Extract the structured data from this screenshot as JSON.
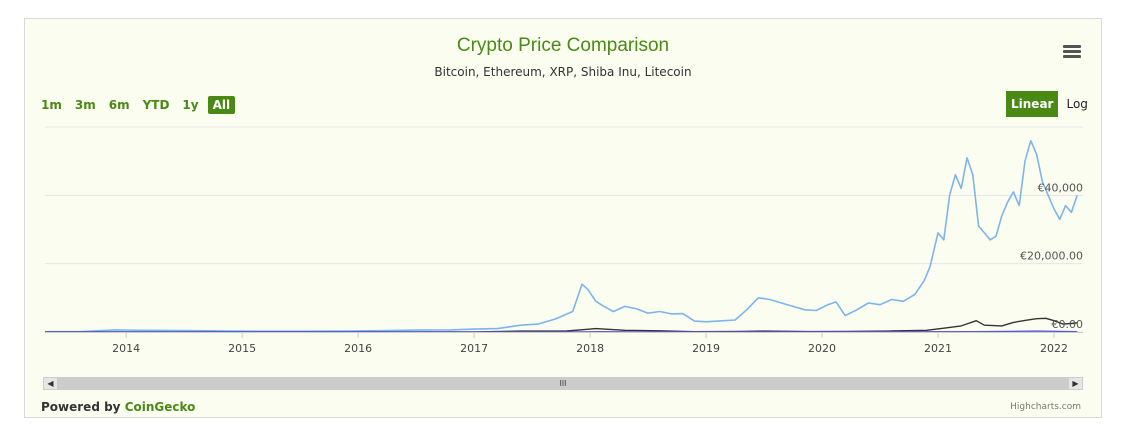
{
  "header": {
    "title": "Crypto Price Comparison",
    "subtitle": "Bitcoin, Ethereum, XRP, Shiba Inu, Litecoin",
    "menu_icon": "hamburger-menu-icon"
  },
  "range_selector": {
    "buttons": [
      "1m",
      "3m",
      "6m",
      "YTD",
      "1y",
      "All"
    ],
    "selected": "All"
  },
  "scale_toggle": {
    "linear_label": "Linear",
    "log_label": "Log",
    "selected": "Linear"
  },
  "footer": {
    "powered_prefix": "Powered by",
    "powered_link": "CoinGecko",
    "credits": "Highcharts.com"
  },
  "scrollbar": {
    "left_arrow": "◀",
    "right_arrow": "▶",
    "grip": "III"
  },
  "colors": {
    "accent": "#4a8a14",
    "bitcoin": "#7cb5ec",
    "ethereum": "#333333",
    "others": "#5b5bd6"
  },
  "chart_data": {
    "type": "line",
    "title": "Crypto Price Comparison",
    "subtitle": "Bitcoin, Ethereum, XRP, Shiba Inu, Litecoin",
    "ylim": [
      0,
      60000
    ],
    "y_tick_labels": [
      {
        "value": 0,
        "label": "€0.00"
      },
      {
        "value": 20000,
        "label": "€20,000.00"
      },
      {
        "value": 40000,
        "label": "€40,000"
      }
    ],
    "x_tick_labels": [
      {
        "value": 2014.0,
        "label": "2014"
      },
      {
        "value": 2015.0,
        "label": "2015"
      },
      {
        "value": 2016.0,
        "label": "2016"
      },
      {
        "value": 2017.0,
        "label": "2017"
      },
      {
        "value": 2018.0,
        "label": "2018"
      },
      {
        "value": 2019.0,
        "label": "2019"
      },
      {
        "value": 2020.0,
        "label": "2020"
      },
      {
        "value": 2021.0,
        "label": "2021"
      },
      {
        "value": 2022.0,
        "label": "2022"
      }
    ],
    "xlim": [
      2013.3,
      2022.25
    ],
    "grid": true,
    "series": [
      {
        "color": "#7cb5ec",
        "points": [
          [
            2013.3,
            100
          ],
          [
            2013.6,
            90
          ],
          [
            2013.9,
            600
          ],
          [
            2014.1,
            500
          ],
          [
            2014.5,
            450
          ],
          [
            2014.9,
            300
          ],
          [
            2015.2,
            220
          ],
          [
            2015.6,
            220
          ],
          [
            2015.9,
            300
          ],
          [
            2016.2,
            380
          ],
          [
            2016.5,
            550
          ],
          [
            2016.8,
            620
          ],
          [
            2017.0,
            850
          ],
          [
            2017.2,
            1000
          ],
          [
            2017.4,
            2000
          ],
          [
            2017.55,
            2300
          ],
          [
            2017.7,
            3800
          ],
          [
            2017.85,
            6000
          ],
          [
            2017.93,
            14000
          ],
          [
            2017.98,
            12500
          ],
          [
            2018.05,
            9000
          ],
          [
            2018.12,
            7500
          ],
          [
            2018.2,
            6000
          ],
          [
            2018.3,
            7500
          ],
          [
            2018.4,
            6800
          ],
          [
            2018.5,
            5500
          ],
          [
            2018.6,
            6000
          ],
          [
            2018.7,
            5300
          ],
          [
            2018.8,
            5400
          ],
          [
            2018.9,
            3200
          ],
          [
            2019.0,
            3000
          ],
          [
            2019.1,
            3200
          ],
          [
            2019.25,
            3500
          ],
          [
            2019.35,
            6500
          ],
          [
            2019.45,
            10000
          ],
          [
            2019.55,
            9500
          ],
          [
            2019.65,
            8500
          ],
          [
            2019.75,
            7500
          ],
          [
            2019.85,
            6500
          ],
          [
            2019.95,
            6300
          ],
          [
            2020.05,
            8000
          ],
          [
            2020.12,
            8800
          ],
          [
            2020.2,
            4800
          ],
          [
            2020.3,
            6500
          ],
          [
            2020.4,
            8500
          ],
          [
            2020.5,
            8000
          ],
          [
            2020.6,
            9500
          ],
          [
            2020.7,
            9000
          ],
          [
            2020.8,
            11000
          ],
          [
            2020.88,
            15000
          ],
          [
            2020.93,
            19000
          ],
          [
            2021.0,
            29000
          ],
          [
            2021.05,
            27000
          ],
          [
            2021.1,
            40000
          ],
          [
            2021.15,
            46000
          ],
          [
            2021.2,
            42000
          ],
          [
            2021.25,
            51000
          ],
          [
            2021.3,
            46000
          ],
          [
            2021.35,
            31000
          ],
          [
            2021.4,
            29000
          ],
          [
            2021.45,
            27000
          ],
          [
            2021.5,
            28000
          ],
          [
            2021.55,
            34000
          ],
          [
            2021.6,
            38000
          ],
          [
            2021.65,
            41000
          ],
          [
            2021.7,
            37000
          ],
          [
            2021.75,
            50000
          ],
          [
            2021.8,
            56000
          ],
          [
            2021.85,
            52000
          ],
          [
            2021.9,
            44000
          ],
          [
            2021.95,
            40000
          ],
          [
            2022.0,
            36000
          ],
          [
            2022.05,
            33000
          ],
          [
            2022.1,
            37000
          ],
          [
            2022.15,
            35000
          ],
          [
            2022.2,
            40000
          ]
        ]
      },
      {
        "color": "#333333",
        "points": [
          [
            2013.3,
            0
          ],
          [
            2015.6,
            0
          ],
          [
            2016.5,
            10
          ],
          [
            2017.0,
            10
          ],
          [
            2017.4,
            250
          ],
          [
            2017.8,
            300
          ],
          [
            2017.95,
            700
          ],
          [
            2018.05,
            1000
          ],
          [
            2018.3,
            500
          ],
          [
            2018.6,
            350
          ],
          [
            2018.9,
            100
          ],
          [
            2019.3,
            150
          ],
          [
            2019.5,
            250
          ],
          [
            2019.9,
            120
          ],
          [
            2020.2,
            140
          ],
          [
            2020.6,
            300
          ],
          [
            2020.9,
            500
          ],
          [
            2021.05,
            1100
          ],
          [
            2021.2,
            1800
          ],
          [
            2021.33,
            3300
          ],
          [
            2021.4,
            2000
          ],
          [
            2021.55,
            1800
          ],
          [
            2021.65,
            2800
          ],
          [
            2021.75,
            3400
          ],
          [
            2021.85,
            3900
          ],
          [
            2021.93,
            4000
          ],
          [
            2022.0,
            3300
          ],
          [
            2022.08,
            2300
          ],
          [
            2022.15,
            2500
          ],
          [
            2022.2,
            2700
          ]
        ]
      },
      {
        "color": "#5b5bd6",
        "points": [
          [
            2013.3,
            0
          ],
          [
            2017.9,
            20
          ],
          [
            2018.1,
            80
          ],
          [
            2018.5,
            5
          ],
          [
            2021.3,
            100
          ],
          [
            2021.85,
            250
          ],
          [
            2022.2,
            100
          ]
        ]
      }
    ]
  }
}
